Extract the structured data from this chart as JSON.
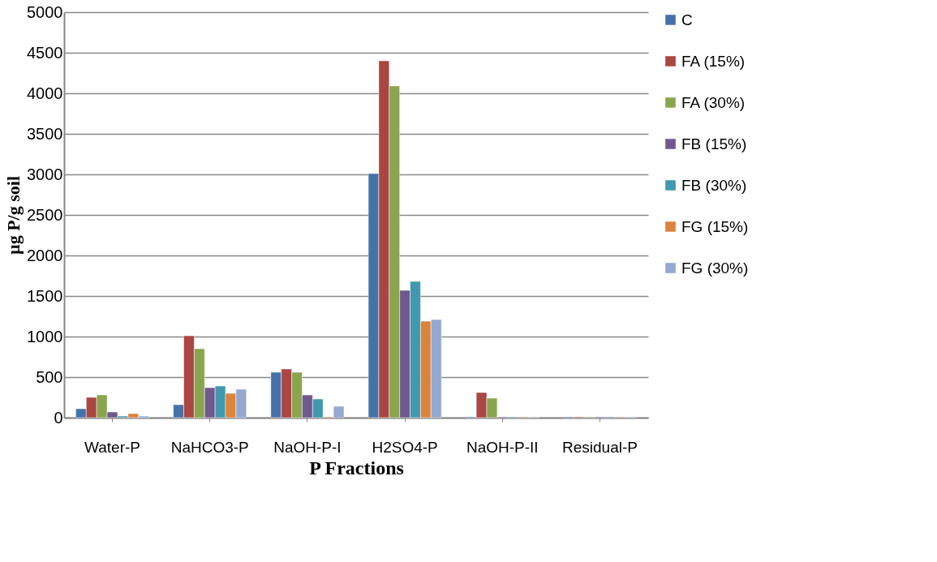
{
  "chart_data": {
    "type": "bar",
    "xlabel": "P Fractions",
    "ylabel": "µg P/g soil",
    "categories": [
      "Water-P",
      "NaHCO3-P",
      "NaOH-P-I",
      "H2SO4-P",
      "NaOH-P-II",
      "Residual-P"
    ],
    "series": [
      {
        "name": "C",
        "color": "#4572a7",
        "values": [
          110,
          160,
          560,
          3010,
          10,
          10
        ]
      },
      {
        "name": "FA (15%)",
        "color": "#aa4643",
        "values": [
          250,
          1010,
          600,
          4400,
          310,
          10
        ]
      },
      {
        "name": "FA (30%)",
        "color": "#89a54e",
        "values": [
          280,
          850,
          560,
          4090,
          240,
          10
        ]
      },
      {
        "name": "FB (15%)",
        "color": "#71588f",
        "values": [
          70,
          370,
          280,
          1570,
          10,
          10
        ]
      },
      {
        "name": "FB (30%)",
        "color": "#4198af",
        "values": [
          20,
          390,
          230,
          1680,
          10,
          10
        ]
      },
      {
        "name": "FG (15%)",
        "color": "#db843d",
        "values": [
          50,
          300,
          10,
          1190,
          10,
          10
        ]
      },
      {
        "name": "FG (30%)",
        "color": "#93a9cf",
        "values": [
          20,
          350,
          140,
          1210,
          10,
          10
        ]
      }
    ],
    "ylim": [
      0,
      5000
    ],
    "yticks": [
      0,
      500,
      1000,
      1500,
      2000,
      2500,
      3000,
      3500,
      4000,
      4500,
      5000
    ],
    "grid": "y",
    "legend": "right"
  }
}
